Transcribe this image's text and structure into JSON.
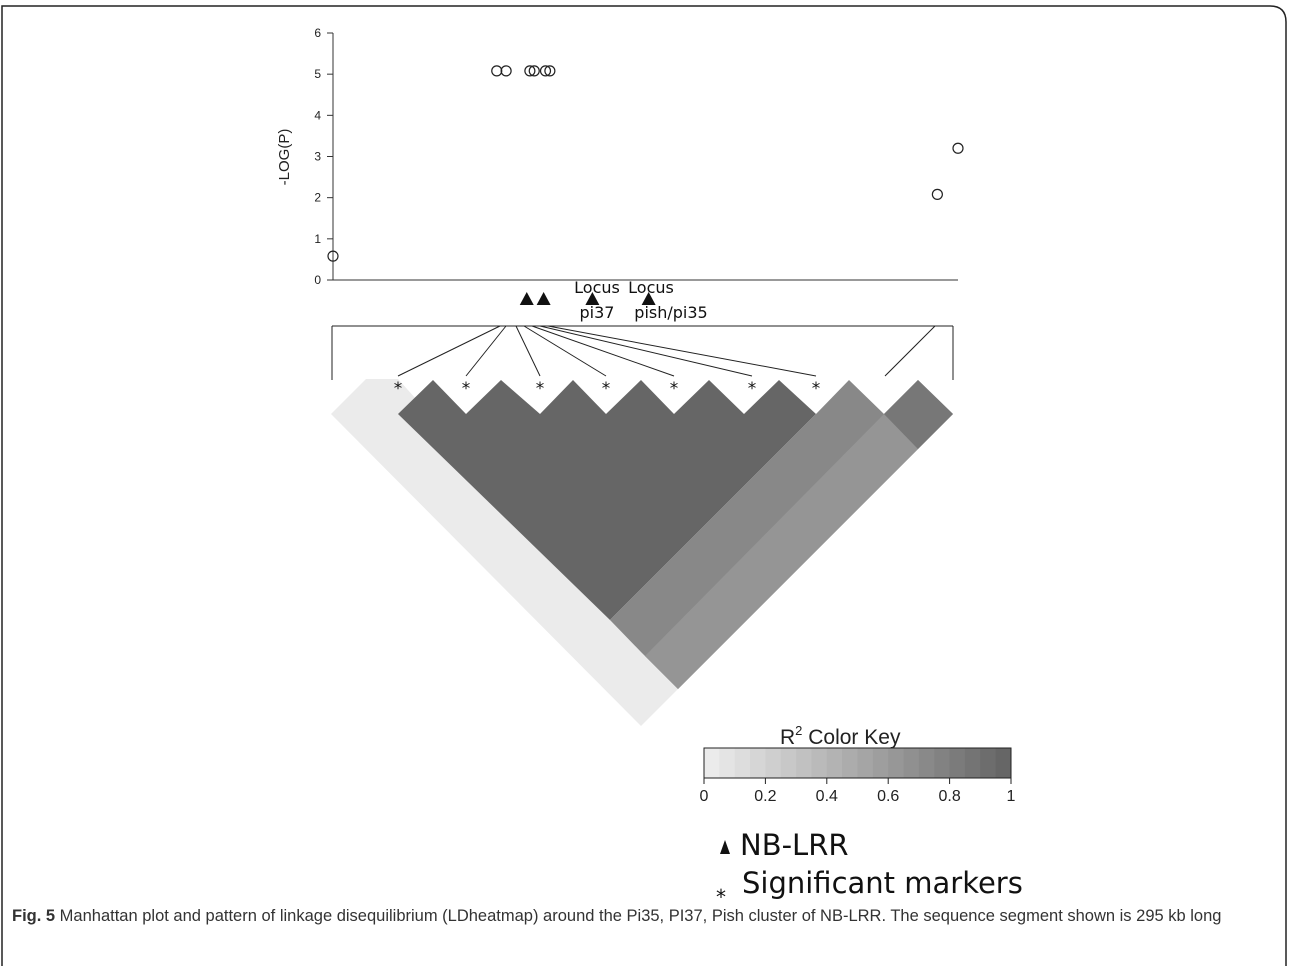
{
  "chart_data": {
    "type": "scatter",
    "ylabel": "-LOG(P)",
    "ylim": [
      0,
      6
    ],
    "yticks": [
      "0",
      "1",
      "2",
      "3",
      "4",
      "5",
      "6"
    ],
    "points": [
      {
        "x": 0.0,
        "y": 0.58
      },
      {
        "x": 0.262,
        "y": 5.08
      },
      {
        "x": 0.277,
        "y": 5.08
      },
      {
        "x": 0.315,
        "y": 5.08
      },
      {
        "x": 0.322,
        "y": 5.08
      },
      {
        "x": 0.34,
        "y": 5.08
      },
      {
        "x": 0.347,
        "y": 5.08
      },
      {
        "x": 0.967,
        "y": 2.08
      },
      {
        "x": 1.0,
        "y": 3.2
      }
    ],
    "nblrr_positions": [
      0.31,
      0.337,
      0.415,
      0.505
    ],
    "loci": [
      {
        "line1": "Locus",
        "line2": "pi37"
      },
      {
        "line1": "Locus",
        "line2": "pish/pi35"
      }
    ],
    "ld_colors": [
      "#ebebeb",
      "#666666",
      "#888888",
      "#777777"
    ],
    "color_key": {
      "title": "R",
      "superscript": "2",
      "title_rest": " Color Key",
      "ticks": [
        "0",
        "0.2",
        "0.4",
        "0.6",
        "0.8",
        "1"
      ]
    }
  },
  "legend": {
    "nblrr_label": "NB-LRR",
    "significant_label": "Significant markers",
    "asterisk": "*"
  },
  "caption": {
    "label": "Fig. 5",
    "text": " Manhattan plot and pattern of linkage disequilibrium (LDheatmap) around the Pi35, PI37, Pish cluster of NB-LRR. The sequence segment shown is 295 kb long"
  }
}
